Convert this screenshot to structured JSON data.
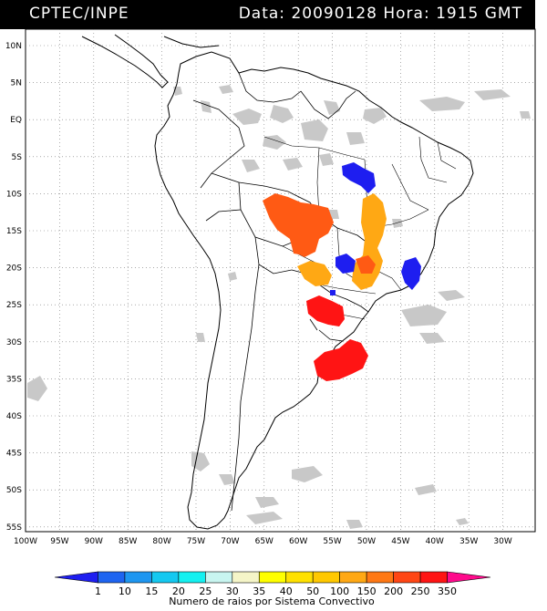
{
  "header": {
    "source": "CPTEC/INPE",
    "datetime": "Data: 20090128 Hora: 1915 GMT"
  },
  "map": {
    "lat_labels": [
      "10N",
      "5N",
      "EQ",
      "5S",
      "10S",
      "15S",
      "20S",
      "25S",
      "30S",
      "35S",
      "40S",
      "45S",
      "50S",
      "55S"
    ],
    "lon_labels": [
      "100W",
      "95W",
      "90W",
      "85W",
      "80W",
      "75W",
      "70W",
      "65W",
      "60W",
      "55W",
      "50W",
      "45W",
      "40W",
      "35W",
      "30W"
    ],
    "colors": {
      "cloud_gray": "#c8c8c8",
      "blue": "#1e1ef0",
      "orange_red": "#ff5a14",
      "orange": "#ffa814",
      "red": "#ff1414"
    }
  },
  "colorbar": {
    "title": "Numero de raios por Sistema Convectivo",
    "labels": [
      "1",
      "10",
      "15",
      "20",
      "25",
      "30",
      "35",
      "40",
      "50",
      "100",
      "150",
      "200",
      "250",
      "350"
    ],
    "colors": [
      "#1e1ef0",
      "#1e64f0",
      "#1e96f0",
      "#14c8f0",
      "#14f0f0",
      "#c8f5f0",
      "#f5f5c8",
      "#ffff00",
      "#ffe100",
      "#ffc800",
      "#ffa814",
      "#ff7814",
      "#ff4614",
      "#ff1414",
      "#ff0a8c"
    ]
  }
}
